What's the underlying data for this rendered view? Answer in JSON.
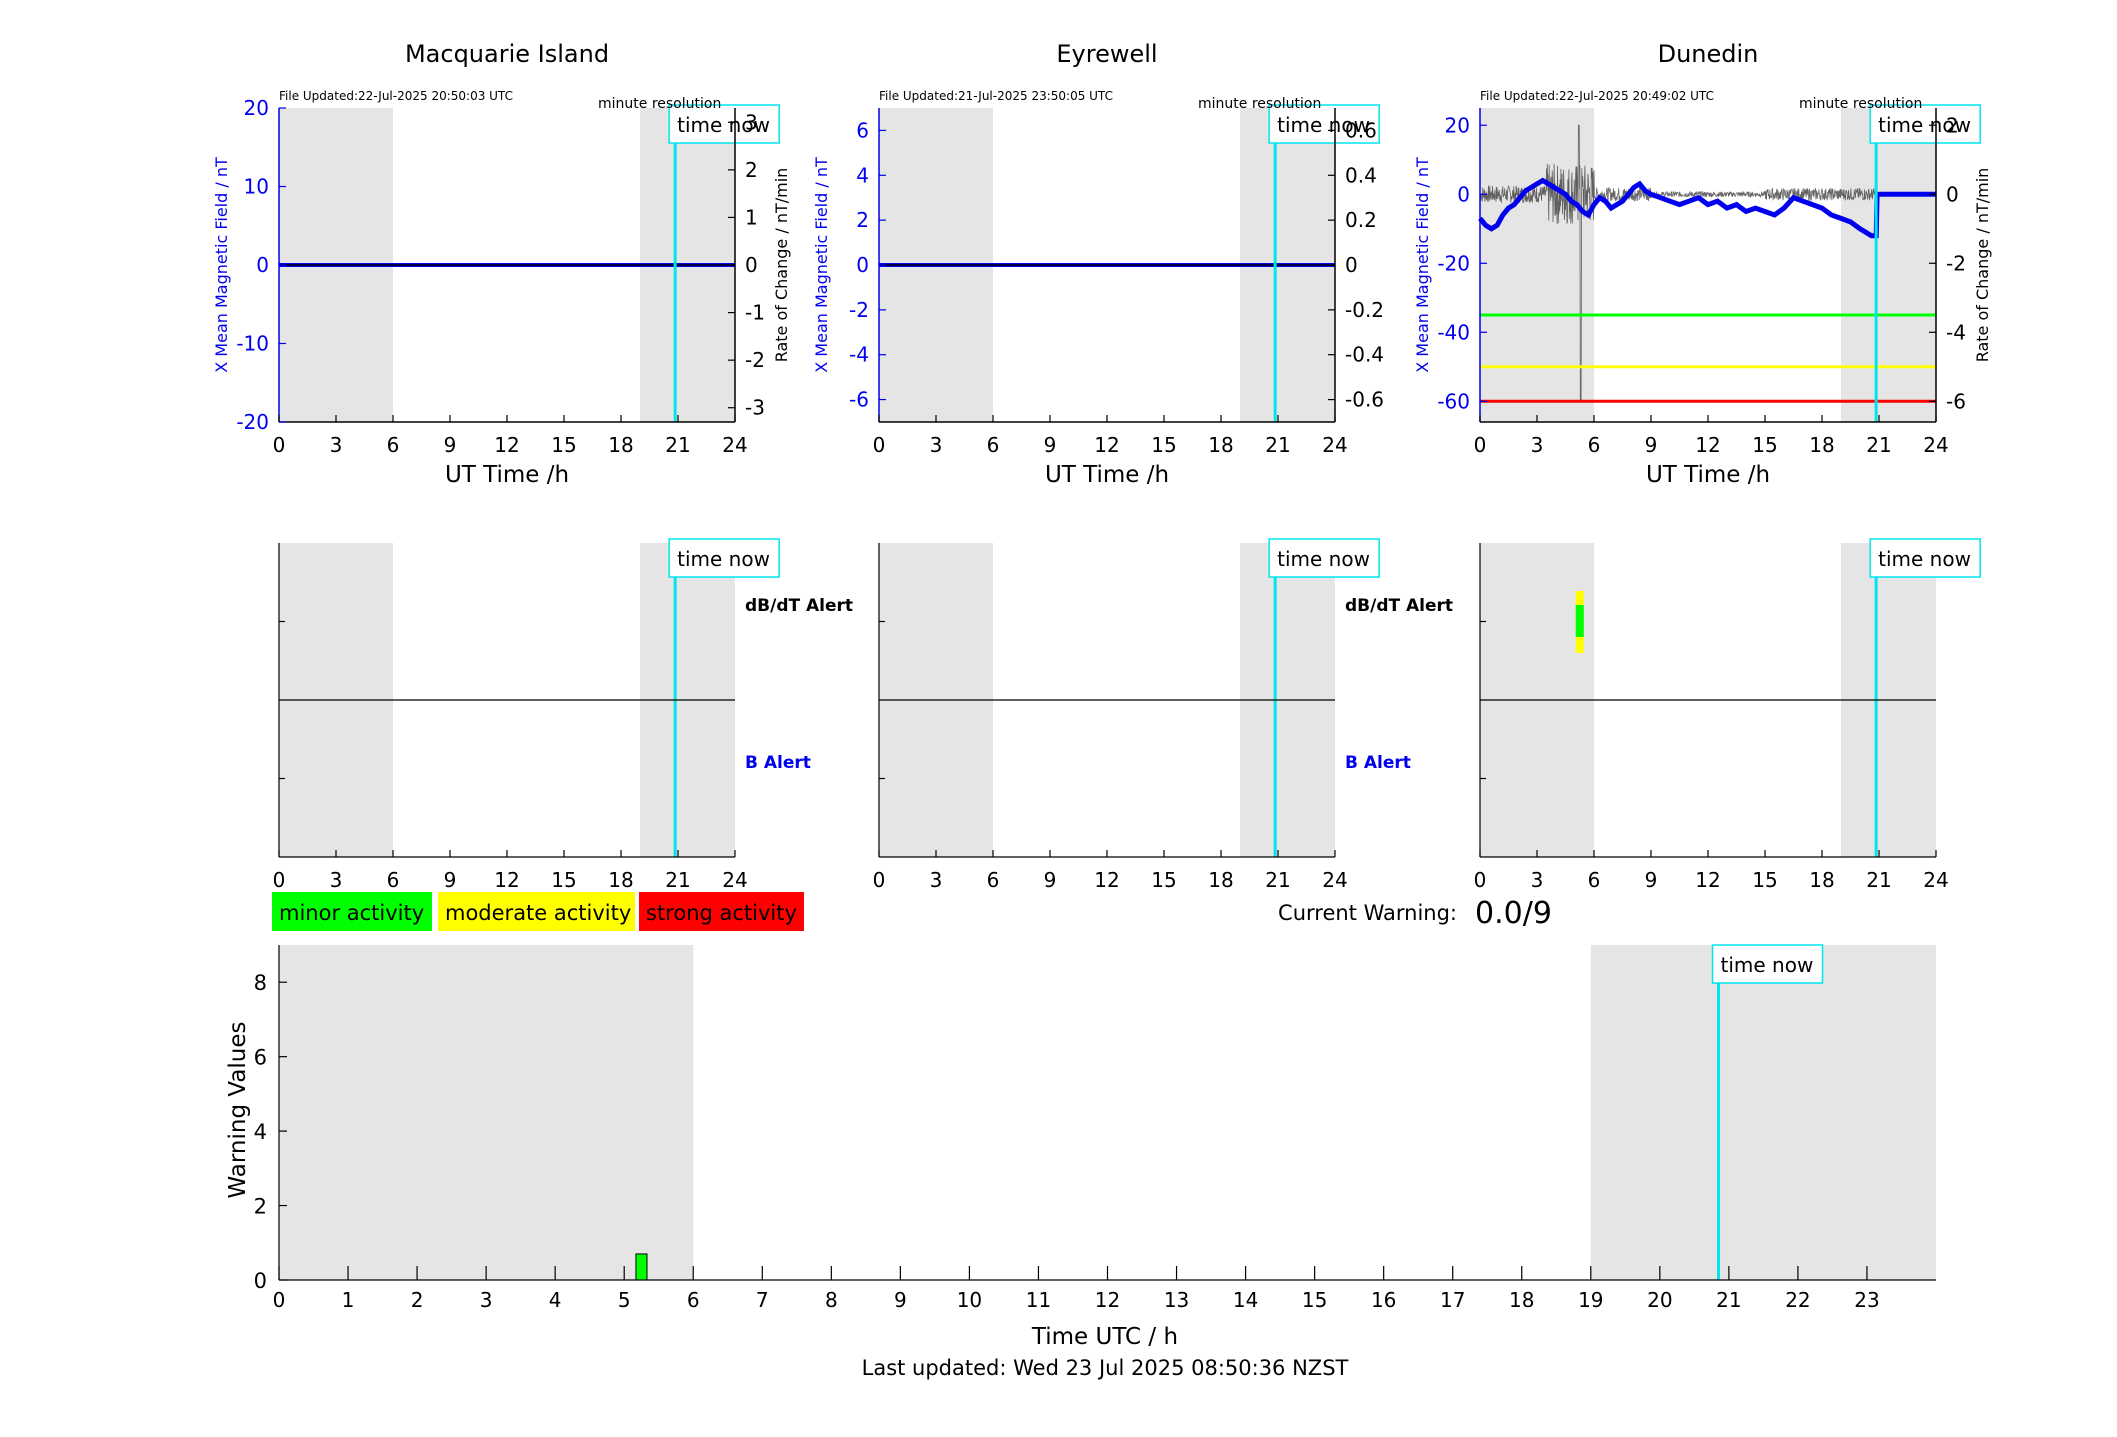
{
  "figure": {
    "last_updated": "Last updated: Wed 23 Jul 2025 08:50:36 NZST",
    "time_now_label": "time now",
    "minute_resolution_label": "minute resolution",
    "x_axis_label": "UT Time /h",
    "hour_ticks": [
      "0",
      "3",
      "6",
      "9",
      "12",
      "15",
      "18",
      "21",
      "24"
    ],
    "time_now_hour": 20.85,
    "night_shading_hours": [
      [
        0,
        6
      ],
      [
        19,
        24
      ]
    ],
    "dbdt_alert_label": "dB/dT Alert",
    "b_alert_label": "B Alert",
    "current_warning_label": "Current Warning:",
    "current_warning_value": "0.0/9",
    "legend": [
      {
        "label": "minor activity",
        "color": "#00ff00"
      },
      {
        "label": "moderate activity",
        "color": "#ffff00"
      },
      {
        "label": "strong activity",
        "color": "#ff0000"
      }
    ],
    "colors": {
      "field": "#0000ee",
      "time_now": "#00e5ee",
      "night": "#e5e5e5",
      "rate": "#333333"
    }
  },
  "stations": [
    {
      "name": "Macquarie Island",
      "file_updated": "File Updated:22-Jul-2025 20:50:03 UTC",
      "left_axis_label": "X Mean Magnetic Field / nT",
      "right_axis_label": "Rate of Change / nT/min",
      "left_ticks": [
        "20",
        "10",
        "0",
        "-10",
        "-20"
      ],
      "left_tick_values": [
        20,
        10,
        0,
        -10,
        -20
      ],
      "left_range": [
        -20,
        20
      ],
      "right_ticks": [
        "3",
        "2",
        "1",
        "0",
        "-1",
        "-2",
        "-3"
      ],
      "right_tick_values": [
        3,
        2,
        1,
        0,
        -1,
        -2,
        -3
      ],
      "right_range": [
        -3.3,
        3.3
      ],
      "thresholds": [],
      "field_series": [
        [
          0,
          0
        ],
        [
          24,
          0
        ]
      ],
      "alerts": [],
      "show_alert_labels": true
    },
    {
      "name": "Eyrewell",
      "file_updated": "File Updated:21-Jul-2025 23:50:05 UTC",
      "left_axis_label": "X Mean Magnetic Field / nT",
      "right_axis_label": "",
      "left_ticks": [
        "6",
        "4",
        "2",
        "0",
        "-2",
        "-4",
        "-6"
      ],
      "left_tick_values": [
        6,
        4,
        2,
        0,
        -2,
        -4,
        -6
      ],
      "left_range": [
        -7,
        7
      ],
      "right_ticks": [
        "0.6",
        "0.4",
        "0.2",
        "0",
        "-0.2",
        "-0.4",
        "-0.6"
      ],
      "right_tick_values": [
        0.6,
        0.4,
        0.2,
        0,
        -0.2,
        -0.4,
        -0.6
      ],
      "right_range": [
        -0.7,
        0.7
      ],
      "thresholds": [],
      "field_series": [
        [
          0,
          0
        ],
        [
          24,
          0
        ]
      ],
      "alerts": [],
      "show_alert_labels": true
    },
    {
      "name": "Dunedin",
      "file_updated": "File Updated:22-Jul-2025 20:49:02 UTC",
      "left_axis_label": "X Mean Magnetic Field / nT",
      "right_axis_label": "Rate of Change / nT/min",
      "left_ticks": [
        "20",
        "0",
        "-20",
        "-40",
        "-60"
      ],
      "left_tick_values": [
        20,
        0,
        -20,
        -40,
        -60
      ],
      "left_range": [
        -66,
        25
      ],
      "right_ticks": [
        "2",
        "0",
        "-2",
        "-4",
        "-6"
      ],
      "right_tick_values": [
        2,
        0,
        -2,
        -4,
        -6
      ],
      "right_range": [
        -6.6,
        2.5
      ],
      "thresholds": [
        {
          "value": -35,
          "color": "#00ff00"
        },
        {
          "value": -50,
          "color": "#ffff00"
        },
        {
          "value": -60,
          "color": "#ff0000"
        }
      ],
      "field_series": [
        [
          0,
          -7
        ],
        [
          0.3,
          -9
        ],
        [
          0.6,
          -10
        ],
        [
          0.9,
          -9
        ],
        [
          1.2,
          -6
        ],
        [
          1.5,
          -4
        ],
        [
          1.8,
          -3
        ],
        [
          2.1,
          -1
        ],
        [
          2.4,
          1
        ],
        [
          2.7,
          2
        ],
        [
          3.0,
          3
        ],
        [
          3.3,
          4
        ],
        [
          3.6,
          3
        ],
        [
          3.9,
          2
        ],
        [
          4.2,
          1
        ],
        [
          4.5,
          0
        ],
        [
          4.8,
          -2
        ],
        [
          5.1,
          -3
        ],
        [
          5.4,
          -5
        ],
        [
          5.7,
          -6
        ],
        [
          6.0,
          -3
        ],
        [
          6.3,
          -1
        ],
        [
          6.6,
          -2
        ],
        [
          6.9,
          -4
        ],
        [
          7.2,
          -3
        ],
        [
          7.5,
          -2
        ],
        [
          7.8,
          0
        ],
        [
          8.1,
          2
        ],
        [
          8.4,
          3
        ],
        [
          8.7,
          1
        ],
        [
          9.0,
          0
        ],
        [
          9.5,
          -1
        ],
        [
          10.0,
          -2
        ],
        [
          10.5,
          -3
        ],
        [
          11.0,
          -2
        ],
        [
          11.5,
          -1
        ],
        [
          12.0,
          -3
        ],
        [
          12.5,
          -2
        ],
        [
          13.0,
          -4
        ],
        [
          13.5,
          -3
        ],
        [
          14.0,
          -5
        ],
        [
          14.5,
          -4
        ],
        [
          15.0,
          -5
        ],
        [
          15.5,
          -6
        ],
        [
          16.0,
          -4
        ],
        [
          16.5,
          -1
        ],
        [
          17.0,
          -2
        ],
        [
          17.5,
          -3
        ],
        [
          18.0,
          -4
        ],
        [
          18.5,
          -6
        ],
        [
          19.0,
          -7
        ],
        [
          19.5,
          -8
        ],
        [
          20.0,
          -10
        ],
        [
          20.3,
          -11
        ],
        [
          20.6,
          -12
        ],
        [
          20.85,
          -12
        ],
        [
          20.9,
          0
        ],
        [
          24,
          0
        ]
      ],
      "alerts": [
        {
          "hour": 5.25,
          "type": "dbdt",
          "color": "#ffff00"
        },
        {
          "hour": 5.25,
          "type": "dbdt-core",
          "color": "#00ff00"
        }
      ],
      "show_alert_labels": false
    }
  ],
  "chart_data": [
    {
      "type": "bar",
      "title": "",
      "xlabel": "Time UTC / h",
      "ylabel": "Warning Values",
      "categories": [
        "0",
        "1",
        "2",
        "3",
        "4",
        "5",
        "6",
        "7",
        "8",
        "9",
        "10",
        "11",
        "12",
        "13",
        "14",
        "15",
        "16",
        "17",
        "18",
        "19",
        "20",
        "21",
        "22",
        "23"
      ],
      "xlim": [
        0,
        24
      ],
      "ylim": [
        0,
        9
      ],
      "yticks": [
        "0",
        "2",
        "4",
        "6",
        "8"
      ],
      "ytick_values": [
        0,
        2,
        4,
        6,
        8
      ],
      "bars": [
        {
          "x": 5.25,
          "width": 0.16,
          "value": 0.7,
          "color": "#00ff00"
        }
      ]
    }
  ]
}
